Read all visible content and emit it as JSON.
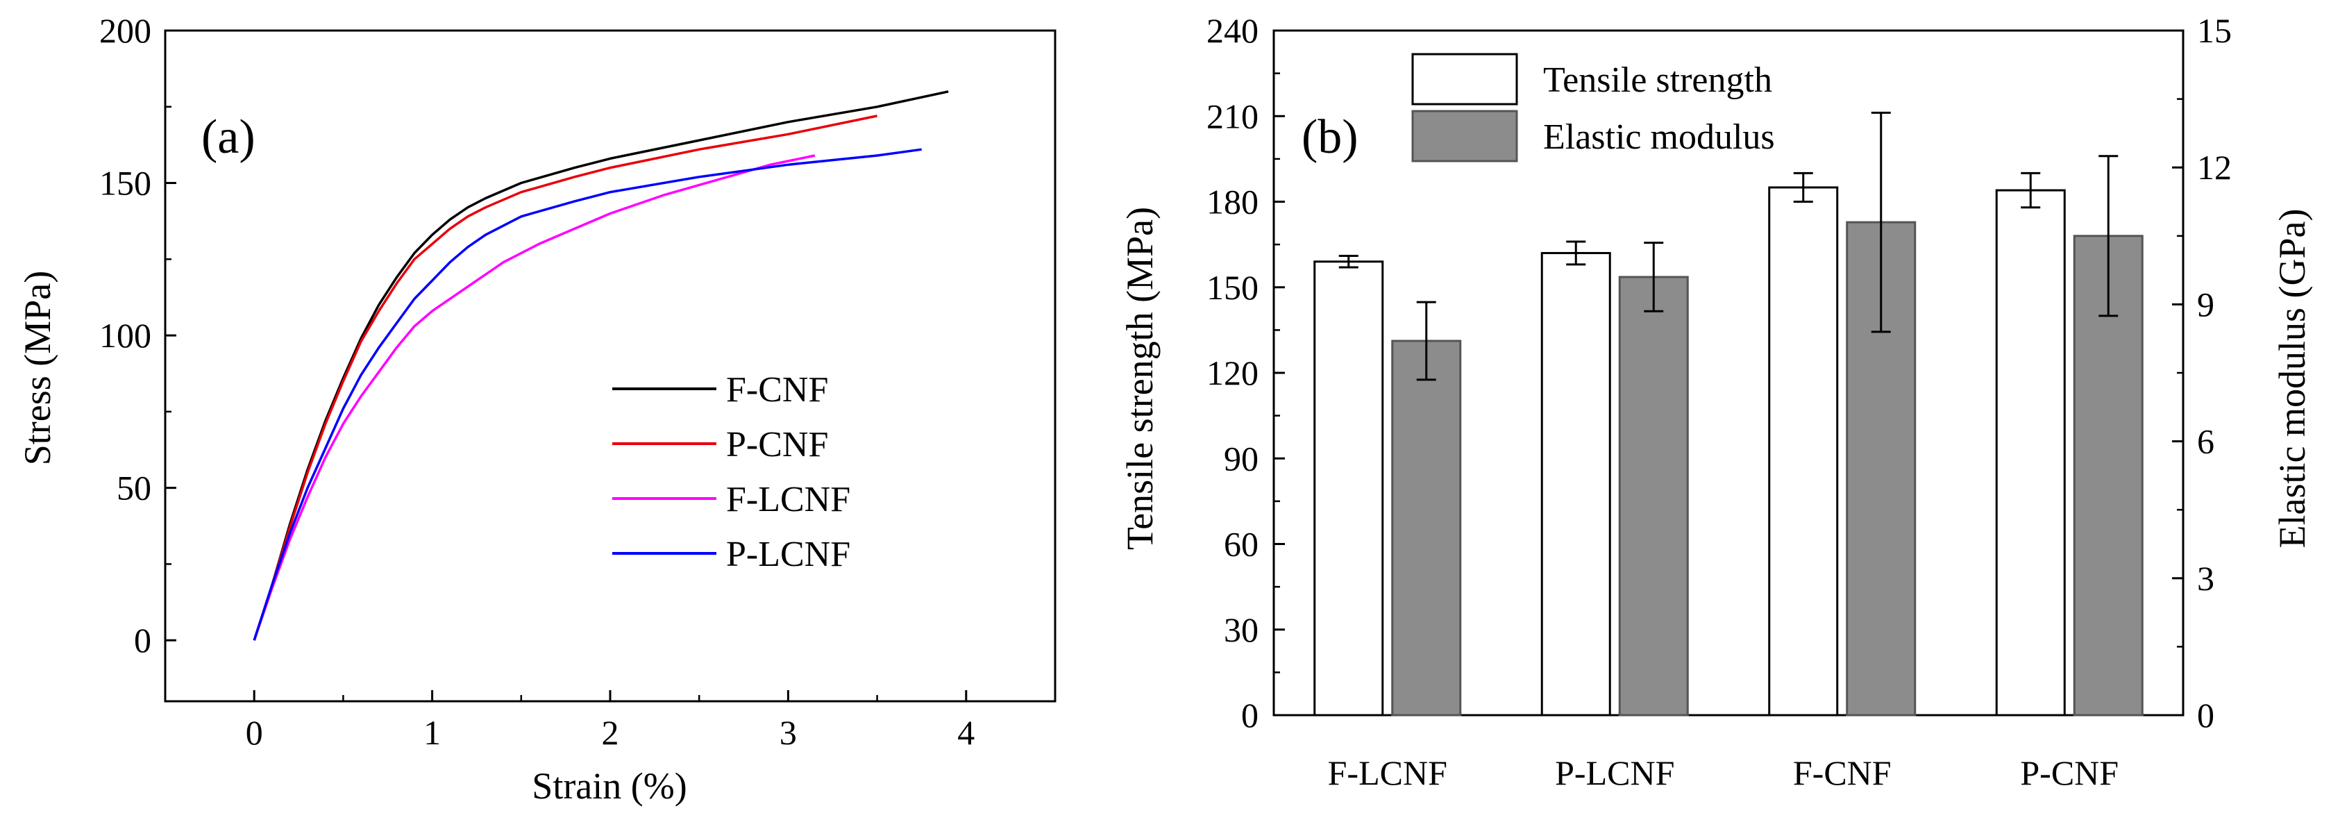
{
  "chart_data": [
    {
      "type": "line",
      "panel_label": "(a)",
      "xlabel": "Strain (%)",
      "ylabel": "Stress (MPa)",
      "xlim": [
        -0.5,
        4.5
      ],
      "ylim": [
        -20,
        200
      ],
      "xticks": [
        0,
        1,
        2,
        3,
        4
      ],
      "yticks": [
        0,
        50,
        100,
        150,
        200
      ],
      "legend_position": "center-right",
      "series": [
        {
          "name": "F-CNF",
          "color": "#000000",
          "points": [
            [
              0,
              0
            ],
            [
              0.1,
              18
            ],
            [
              0.2,
              38
            ],
            [
              0.3,
              56
            ],
            [
              0.4,
              72
            ],
            [
              0.5,
              86
            ],
            [
              0.6,
              99
            ],
            [
              0.7,
              110
            ],
            [
              0.8,
              119
            ],
            [
              0.9,
              127
            ],
            [
              1.0,
              133
            ],
            [
              1.1,
              138
            ],
            [
              1.2,
              142
            ],
            [
              1.3,
              145
            ],
            [
              1.5,
              150
            ],
            [
              1.8,
              155
            ],
            [
              2.0,
              158
            ],
            [
              2.5,
              164
            ],
            [
              3.0,
              170
            ],
            [
              3.5,
              175
            ],
            [
              3.9,
              180
            ]
          ]
        },
        {
          "name": "P-CNF",
          "color": "#e8000b",
          "points": [
            [
              0,
              0
            ],
            [
              0.1,
              18
            ],
            [
              0.2,
              37
            ],
            [
              0.3,
              55
            ],
            [
              0.4,
              71
            ],
            [
              0.5,
              85
            ],
            [
              0.6,
              98
            ],
            [
              0.7,
              108
            ],
            [
              0.8,
              117
            ],
            [
              0.9,
              125
            ],
            [
              1.0,
              130
            ],
            [
              1.1,
              135
            ],
            [
              1.2,
              139
            ],
            [
              1.3,
              142
            ],
            [
              1.5,
              147
            ],
            [
              1.8,
              152
            ],
            [
              2.0,
              155
            ],
            [
              2.5,
              161
            ],
            [
              3.0,
              166
            ],
            [
              3.5,
              172
            ]
          ]
        },
        {
          "name": "F-LCNF",
          "color": "#ff00ff",
          "points": [
            [
              0,
              0
            ],
            [
              0.1,
              17
            ],
            [
              0.2,
              33
            ],
            [
              0.3,
              47
            ],
            [
              0.4,
              60
            ],
            [
              0.5,
              71
            ],
            [
              0.6,
              80
            ],
            [
              0.7,
              88
            ],
            [
              0.8,
              96
            ],
            [
              0.9,
              103
            ],
            [
              1.0,
              108
            ],
            [
              1.1,
              112
            ],
            [
              1.2,
              116
            ],
            [
              1.4,
              124
            ],
            [
              1.6,
              130
            ],
            [
              1.8,
              135
            ],
            [
              2.0,
              140
            ],
            [
              2.3,
              146
            ],
            [
              2.6,
              151
            ],
            [
              2.9,
              156
            ],
            [
              3.15,
              159
            ]
          ]
        },
        {
          "name": "P-LCNF",
          "color": "#0000ff",
          "points": [
            [
              0,
              0
            ],
            [
              0.1,
              18
            ],
            [
              0.2,
              35
            ],
            [
              0.3,
              50
            ],
            [
              0.4,
              63
            ],
            [
              0.5,
              76
            ],
            [
              0.6,
              87
            ],
            [
              0.7,
              96
            ],
            [
              0.8,
              104
            ],
            [
              0.9,
              112
            ],
            [
              1.0,
              118
            ],
            [
              1.1,
              124
            ],
            [
              1.2,
              129
            ],
            [
              1.3,
              133
            ],
            [
              1.5,
              139
            ],
            [
              1.8,
              144
            ],
            [
              2.0,
              147
            ],
            [
              2.5,
              152
            ],
            [
              3.0,
              156
            ],
            [
              3.5,
              159
            ],
            [
              3.75,
              161
            ]
          ]
        }
      ]
    },
    {
      "type": "bar",
      "panel_label": "(b)",
      "categories": [
        "F-LCNF",
        "P-LCNF",
        "F-CNF",
        "P-CNF"
      ],
      "ylabel": "Tensile strength (MPa)",
      "y2label": "Elastic modulus (GPa)",
      "ylim": [
        0,
        240
      ],
      "y2lim": [
        0,
        15
      ],
      "yticks": [
        0,
        30,
        60,
        90,
        120,
        150,
        180,
        210,
        240
      ],
      "y2ticks": [
        0,
        3,
        6,
        9,
        12,
        15
      ],
      "legend_position": "top-left",
      "series": [
        {
          "name": "Tensile strength",
          "axis": "left",
          "color": "#ffffff",
          "values": [
            159,
            162,
            185,
            184
          ],
          "errors": [
            2,
            4,
            5,
            6
          ]
        },
        {
          "name": "Elastic modulus",
          "axis": "right",
          "color": "#8c8c8c",
          "values": [
            8.2,
            9.6,
            10.8,
            10.5
          ],
          "errors": [
            0.85,
            0.75,
            2.4,
            1.75
          ]
        }
      ]
    }
  ]
}
